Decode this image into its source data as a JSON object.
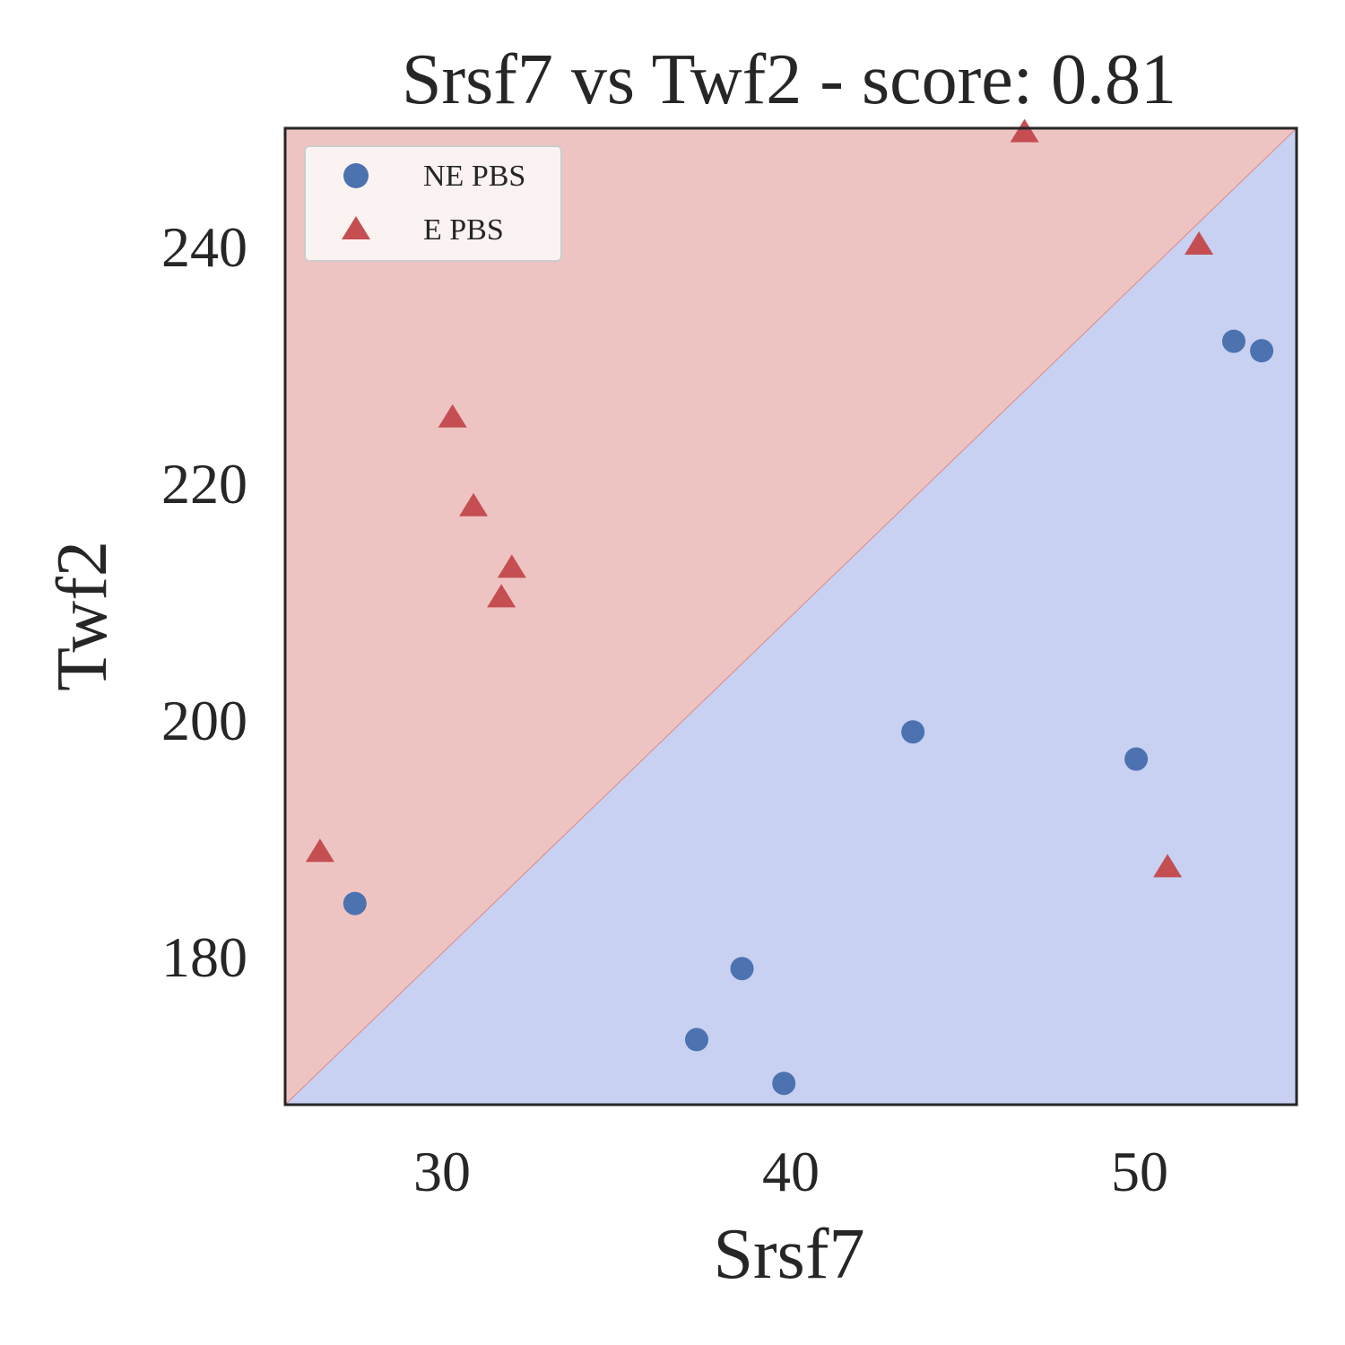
{
  "chart_data": {
    "type": "scatter",
    "title": "Srsf7 vs Twf2 - score: 0.81",
    "xlabel": "Srsf7",
    "ylabel": "Twf2",
    "xlim": [
      25.5,
      54.5
    ],
    "ylim": [
      167.5,
      250.0
    ],
    "xticks": [
      30,
      40,
      50
    ],
    "yticks": [
      180,
      200,
      220,
      240
    ],
    "grid": false,
    "legend_position": "top-left",
    "decision_boundary": {
      "from": [
        25.5,
        167.5
      ],
      "to": [
        54.5,
        250.0
      ],
      "region_above": "E PBS",
      "region_below": "NE PBS"
    },
    "colors": {
      "ne_marker": "#4c72b0",
      "e_marker": "#c44e52",
      "region_above": "#eec4c2",
      "region_below": "#c8d1f1",
      "boundary_line": "#d98a8a",
      "axes": "#262626"
    },
    "series": [
      {
        "name": "NE PBS",
        "marker": "circle",
        "points": [
          [
            27.5,
            184.5
          ],
          [
            37.3,
            173.0
          ],
          [
            38.6,
            179.0
          ],
          [
            39.8,
            169.3
          ],
          [
            43.5,
            199.0
          ],
          [
            49.9,
            196.7
          ],
          [
            52.7,
            232.0
          ],
          [
            53.5,
            231.2
          ]
        ]
      },
      {
        "name": "E PBS",
        "marker": "triangle",
        "points": [
          [
            26.5,
            189.0
          ],
          [
            30.3,
            225.7
          ],
          [
            30.9,
            218.2
          ],
          [
            31.7,
            210.5
          ],
          [
            32.0,
            213.0
          ],
          [
            46.7,
            249.8
          ],
          [
            50.8,
            187.7
          ],
          [
            51.7,
            240.3
          ]
        ]
      }
    ]
  }
}
